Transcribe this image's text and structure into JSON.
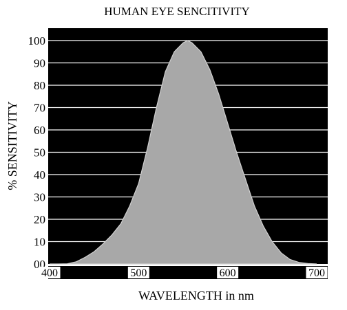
{
  "chart_data": {
    "type": "area",
    "title": "HUMAN EYE SENCITIVITY",
    "xlabel": "WAVELENGTH in nm",
    "ylabel": "% SENSITIVITY",
    "xlim": [
      400,
      700
    ],
    "ylim": [
      0,
      100
    ],
    "xticks": [
      "400",
      "500",
      "600",
      "700"
    ],
    "yticks": [
      "00",
      "10",
      "20",
      "30",
      "40",
      "50",
      "60",
      "70",
      "80",
      "90",
      "100"
    ],
    "grid": "horizontal",
    "colors": {
      "plot_background": "#000000",
      "fill": "#a8a8a8",
      "gridline": "#ffffff"
    },
    "series": [
      {
        "x": [
          400,
          410,
          420,
          430,
          440,
          450,
          460,
          470,
          480,
          490,
          500,
          510,
          520,
          530,
          540,
          550,
          555,
          560,
          570,
          580,
          590,
          600,
          610,
          620,
          630,
          640,
          650,
          660,
          670,
          680,
          690,
          700
        ],
        "y": [
          0,
          0,
          0.1,
          1,
          3,
          5.5,
          9,
          13,
          18,
          26,
          36,
          52,
          70,
          86,
          95,
          99,
          100,
          99,
          95,
          87,
          76,
          63,
          50,
          38,
          26,
          17,
          10,
          5,
          2,
          0.7,
          0.2,
          0
        ]
      }
    ]
  }
}
